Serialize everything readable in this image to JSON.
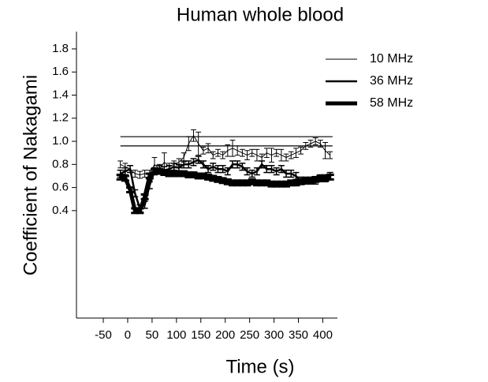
{
  "chart_data": {
    "type": "line",
    "title": "Human whole blood",
    "x_label": "Time (s)",
    "y_label": "Coefficient of Nakagami",
    "xlim": [
      -105,
      430
    ],
    "ylim": [
      -0.53,
      1.95
    ],
    "xticks": [
      -50,
      0,
      50,
      100,
      150,
      200,
      250,
      300,
      350,
      400
    ],
    "yticks": [
      0.4,
      0.6,
      0.8,
      {
        "value": 1,
        "label": "1.0"
      },
      1.2,
      1.4,
      1.6,
      1.8
    ],
    "legend": "upper right",
    "x": [
      -15,
      -5,
      5,
      15,
      25,
      35,
      45,
      55,
      65,
      75,
      85,
      95,
      105,
      115,
      125,
      135,
      145,
      155,
      165,
      175,
      185,
      195,
      205,
      215,
      225,
      235,
      245,
      255,
      265,
      275,
      285,
      295,
      305,
      315,
      325,
      335,
      345,
      355,
      365,
      375,
      385,
      395,
      405,
      415
    ],
    "reference_lines": [
      {
        "y": 1.04,
        "x": [
          -15,
          420
        ]
      },
      {
        "y": 0.96,
        "x": [
          -15,
          420
        ]
      }
    ],
    "series": [
      {
        "name": "10 MHz",
        "color": "#000000",
        "line_width": 1,
        "values": [
          0.8,
          0.78,
          0.76,
          0.72,
          0.71,
          0.72,
          0.72,
          0.8,
          0.76,
          0.82,
          0.78,
          0.8,
          0.82,
          0.86,
          0.98,
          1.05,
          0.98,
          0.92,
          0.94,
          0.88,
          0.9,
          0.88,
          0.92,
          0.94,
          0.92,
          0.9,
          0.88,
          0.9,
          0.88,
          0.86,
          0.9,
          0.88,
          0.9,
          0.88,
          0.86,
          0.88,
          0.9,
          0.92,
          0.96,
          0.98,
          1.0,
          0.98,
          0.92,
          0.88
        ],
        "errors": [
          0.03,
          0.03,
          0.03,
          0.03,
          0.03,
          0.03,
          0.03,
          0.06,
          0.04,
          0.08,
          0.03,
          0.03,
          0.03,
          0.04,
          0.06,
          0.05,
          0.1,
          0.03,
          0.04,
          0.03,
          0.03,
          0.03,
          0.05,
          0.07,
          0.04,
          0.03,
          0.04,
          0.03,
          0.05,
          0.03,
          0.04,
          0.06,
          0.03,
          0.05,
          0.03,
          0.03,
          0.04,
          0.03,
          0.03,
          0.03,
          0.03,
          0.03,
          0.07,
          0.03
        ]
      },
      {
        "name": "36 MHz",
        "color": "#000000",
        "line_width": 2.5,
        "values": [
          0.72,
          0.74,
          0.76,
          0.55,
          0.42,
          0.45,
          0.62,
          0.74,
          0.76,
          0.75,
          0.76,
          0.78,
          0.77,
          0.8,
          0.8,
          0.82,
          0.84,
          0.8,
          0.76,
          0.78,
          0.76,
          0.76,
          0.74,
          0.8,
          0.8,
          0.78,
          0.74,
          0.72,
          0.74,
          0.8,
          0.76,
          0.76,
          0.74,
          0.76,
          0.72,
          0.72,
          0.7,
          0.66,
          0.66,
          0.66,
          0.66,
          0.68,
          0.68,
          0.7
        ],
        "errors": [
          0.03,
          0.03,
          0.03,
          0.03,
          0.03,
          0.03,
          0.03,
          0.03,
          0.03,
          0.03,
          0.03,
          0.03,
          0.03,
          0.03,
          0.03,
          0.03,
          0.03,
          0.03,
          0.03,
          0.03,
          0.03,
          0.03,
          0.03,
          0.03,
          0.03,
          0.03,
          0.03,
          0.03,
          0.03,
          0.03,
          0.03,
          0.03,
          0.03,
          0.03,
          0.03,
          0.03,
          0.03,
          0.03,
          0.03,
          0.03,
          0.03,
          0.03,
          0.03,
          0.03
        ]
      },
      {
        "name": "58 MHz",
        "color": "#000000",
        "line_width": 5,
        "values": [
          0.69,
          0.68,
          0.58,
          0.4,
          0.4,
          0.52,
          0.7,
          0.74,
          0.74,
          0.73,
          0.72,
          0.72,
          0.72,
          0.72,
          0.71,
          0.71,
          0.7,
          0.7,
          0.69,
          0.68,
          0.67,
          0.66,
          0.65,
          0.64,
          0.64,
          0.64,
          0.64,
          0.65,
          0.64,
          0.64,
          0.64,
          0.63,
          0.63,
          0.63,
          0.63,
          0.64,
          0.64,
          0.65,
          0.66,
          0.66,
          0.67,
          0.68,
          0.68,
          0.69
        ],
        "errors": [
          0.02,
          0.02,
          0.02,
          0.02,
          0.02,
          0.02,
          0.02,
          0.02,
          0.02,
          0.02,
          0.02,
          0.02,
          0.02,
          0.02,
          0.02,
          0.02,
          0.02,
          0.02,
          0.02,
          0.02,
          0.02,
          0.02,
          0.02,
          0.02,
          0.02,
          0.02,
          0.02,
          0.02,
          0.02,
          0.02,
          0.02,
          0.02,
          0.02,
          0.02,
          0.02,
          0.02,
          0.02,
          0.02,
          0.02,
          0.02,
          0.02,
          0.02,
          0.02,
          0.02
        ]
      }
    ]
  }
}
